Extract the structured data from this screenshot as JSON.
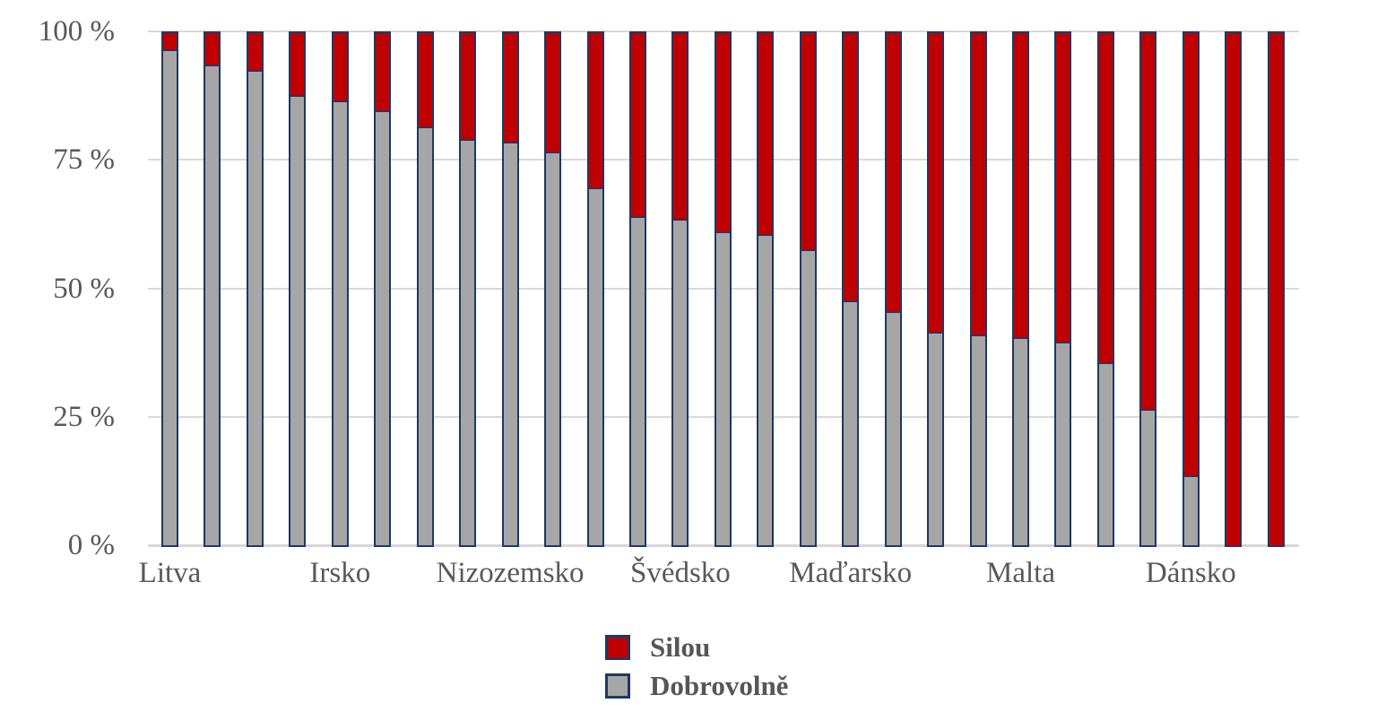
{
  "chart_data": {
    "type": "bar",
    "stacked": true,
    "ylim": [
      0,
      100
    ],
    "grid": "horizontal",
    "legend_position": "bottom-center",
    "y_ticks": [
      {
        "label": "100 %",
        "value": 100
      },
      {
        "label": "75 %",
        "value": 75
      },
      {
        "label": "50 %",
        "value": 50
      },
      {
        "label": "25 %",
        "value": 25
      },
      {
        "label": "0 %",
        "value": 0
      }
    ],
    "series": [
      {
        "name": "Silou",
        "color": "#c00000"
      },
      {
        "name": "Dobrovolně",
        "color": "#a6a6a6"
      }
    ],
    "bars": [
      {
        "label": "Litva",
        "dobrovolne": 97,
        "silou": 3
      },
      {
        "label": "",
        "dobrovolne": 94,
        "silou": 6
      },
      {
        "label": "",
        "dobrovolne": 93,
        "silou": 7
      },
      {
        "label": "",
        "dobrovolne": 88,
        "silou": 12
      },
      {
        "label": "Irsko",
        "dobrovolne": 87,
        "silou": 13
      },
      {
        "label": "",
        "dobrovolne": 85,
        "silou": 15
      },
      {
        "label": "",
        "dobrovolne": 82,
        "silou": 18
      },
      {
        "label": "",
        "dobrovolne": 79.5,
        "silou": 20.5
      },
      {
        "label": "Nizozemsko",
        "dobrovolne": 79,
        "silou": 21
      },
      {
        "label": "",
        "dobrovolne": 77,
        "silou": 23
      },
      {
        "label": "",
        "dobrovolne": 70,
        "silou": 30
      },
      {
        "label": "",
        "dobrovolne": 64.5,
        "silou": 35.5
      },
      {
        "label": "Švédsko",
        "dobrovolne": 64,
        "silou": 36
      },
      {
        "label": "",
        "dobrovolne": 61.5,
        "silou": 38.5
      },
      {
        "label": "",
        "dobrovolne": 61,
        "silou": 39
      },
      {
        "label": "",
        "dobrovolne": 58,
        "silou": 42
      },
      {
        "label": "Maďarsko",
        "dobrovolne": 48,
        "silou": 52
      },
      {
        "label": "",
        "dobrovolne": 46,
        "silou": 54
      },
      {
        "label": "",
        "dobrovolne": 42,
        "silou": 58
      },
      {
        "label": "",
        "dobrovolne": 41.5,
        "silou": 58.5
      },
      {
        "label": "Malta",
        "dobrovolne": 41,
        "silou": 59
      },
      {
        "label": "",
        "dobrovolne": 40,
        "silou": 60
      },
      {
        "label": "",
        "dobrovolne": 36,
        "silou": 64
      },
      {
        "label": "",
        "dobrovolne": 27,
        "silou": 73
      },
      {
        "label": "Dánsko",
        "dobrovolne": 14,
        "silou": 86
      },
      {
        "label": "",
        "dobrovolne": 0,
        "silou": 100
      },
      {
        "label": "",
        "dobrovolne": 0,
        "silou": 100
      }
    ]
  },
  "colors": {
    "silou_red": "#c00000",
    "dobrovolne_gray": "#a6a6a6",
    "bar_border_navy": "#1f3864",
    "gridline": "#d9d9d9",
    "axis_text": "#595959",
    "background": "#ffffff"
  },
  "legend": {
    "items": [
      {
        "label": "Silou"
      },
      {
        "label": "Dobrovolně"
      }
    ]
  }
}
